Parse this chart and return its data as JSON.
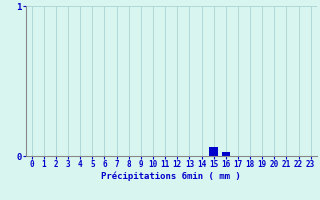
{
  "xlabel": "Précipitations 6min ( mm )",
  "hours": [
    0,
    1,
    2,
    3,
    4,
    5,
    6,
    7,
    8,
    9,
    10,
    11,
    12,
    13,
    14,
    15,
    16,
    17,
    18,
    19,
    20,
    21,
    22,
    23
  ],
  "values": [
    0,
    0,
    0,
    0,
    0,
    0,
    0,
    0,
    0,
    0,
    0,
    0,
    0,
    0,
    0,
    0.06,
    0.03,
    0,
    0,
    0,
    0,
    0,
    0,
    0
  ],
  "bar_color": "#0000cc",
  "background_color": "#d8f5f0",
  "grid_color": "#b0d8d8",
  "text_color": "#0000cc",
  "ylim": [
    0,
    1.0
  ],
  "yticks": [
    0,
    1
  ],
  "spine_color": "#888888",
  "bar_width": 0.7
}
